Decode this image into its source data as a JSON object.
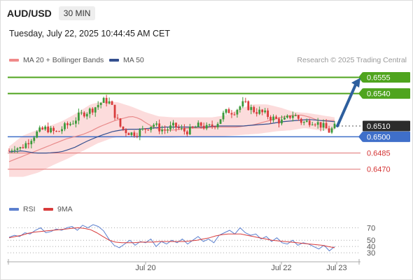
{
  "header": {
    "symbol": "AUD/USD",
    "timeframe": "30 MIN",
    "datetime": "Tuesday, July 22, 2025 10:44:45 AM CET"
  },
  "legend": {
    "bollinger_label": "MA 20 + Bollinger Bands",
    "ma50_label": "MA 50",
    "credit": "Research © 2025 Trading Central",
    "rsi_label": "RSI",
    "rsi_ma_label": "9MA"
  },
  "colors": {
    "candle_up": "#3a9a3a",
    "candle_down": "#d83b3b",
    "band_fill": "#fbd6d6",
    "ma20": "#e88a8a",
    "ma50": "#35508f",
    "green_level": "#4fa41e",
    "blue_level": "#3f6fc9",
    "red_level": "#e07070",
    "arrow": "#2e5f9e",
    "rsi": "#5c80cf",
    "rsi_ma": "#d83b3b"
  },
  "chart_data": [
    {
      "type": "candlestick",
      "title": "AUD/USD",
      "ylim": [
        0.6442,
        0.6565
      ],
      "x_ticks": [
        "Jul 20",
        "Jul 22",
        "Jul 23"
      ],
      "levels": [
        {
          "value": 0.6555,
          "label": "0.6555",
          "kind": "resistance"
        },
        {
          "value": 0.654,
          "label": "0.6540",
          "kind": "resistance"
        },
        {
          "value": 0.651,
          "label": "0.6510",
          "kind": "current"
        },
        {
          "value": 0.65,
          "label": "0.6500",
          "kind": "pivot"
        },
        {
          "value": 0.6485,
          "label": "0.6485",
          "kind": "support"
        },
        {
          "value": 0.647,
          "label": "0.6470",
          "kind": "support"
        }
      ],
      "close_path": [
        0.6487,
        0.6491,
        0.6489,
        0.6493,
        0.6498,
        0.6503,
        0.6506,
        0.6508,
        0.6505,
        0.6504,
        0.6508,
        0.6511,
        0.6514,
        0.6519,
        0.6522,
        0.6524,
        0.6527,
        0.6531,
        0.6534,
        0.6531,
        0.6518,
        0.6508,
        0.6505,
        0.6503,
        0.6504,
        0.6506,
        0.6509,
        0.6512,
        0.6508,
        0.6506,
        0.6508,
        0.651,
        0.6507,
        0.6505,
        0.6506,
        0.6509,
        0.6511,
        0.6508,
        0.651,
        0.6513,
        0.652,
        0.6524,
        0.6523,
        0.6527,
        0.6531,
        0.6527,
        0.6524,
        0.6523,
        0.6521,
        0.6518,
        0.6516,
        0.6514,
        0.6516,
        0.6521,
        0.6518,
        0.6513,
        0.6514,
        0.6515,
        0.6512,
        0.6509,
        0.6505,
        0.6509
      ],
      "ma20": [
        0.6477,
        0.648,
        0.6483,
        0.6486,
        0.6489,
        0.6492,
        0.6495,
        0.6498,
        0.65,
        0.6502,
        0.6505,
        0.6509,
        0.6512,
        0.6515,
        0.6517,
        0.6519,
        0.6517,
        0.6512,
        0.6508,
        0.6506,
        0.6506,
        0.6507,
        0.6508,
        0.6508,
        0.6508,
        0.6509,
        0.6509,
        0.6509,
        0.6509,
        0.651,
        0.6511,
        0.6513,
        0.6515,
        0.6517,
        0.6519,
        0.652,
        0.652,
        0.6518,
        0.6515,
        0.6515,
        0.6515
      ],
      "ma50": [
        0.6486,
        0.6487,
        0.6485,
        0.6485,
        0.6486,
        0.649,
        0.6496,
        0.6501,
        0.6505,
        0.6507,
        0.6507,
        0.6508,
        0.6509,
        0.6509,
        0.6509,
        0.6509,
        0.651,
        0.651,
        0.651,
        0.6511,
        0.6512,
        0.6514,
        0.6515,
        0.6516,
        0.6515,
        0.6514
      ],
      "bb_upper": [
        0.6491,
        0.6501,
        0.6506,
        0.651,
        0.6515,
        0.6522,
        0.653,
        0.6533,
        0.6532,
        0.6528,
        0.6523,
        0.6519,
        0.6518,
        0.6518,
        0.6518,
        0.6518,
        0.652,
        0.6526,
        0.653,
        0.653,
        0.6527,
        0.6523,
        0.6522,
        0.652,
        0.6518
      ],
      "bb_lower": [
        0.6463,
        0.6463,
        0.6467,
        0.6474,
        0.648,
        0.6487,
        0.6494,
        0.6499,
        0.6501,
        0.65,
        0.6499,
        0.6499,
        0.65,
        0.65,
        0.65,
        0.6501,
        0.6502,
        0.6503,
        0.6505,
        0.6506,
        0.6508,
        0.6506,
        0.6506
      ]
    },
    {
      "type": "line",
      "title": "RSI",
      "ylim": [
        20,
        85
      ],
      "y_ticks": [
        70,
        50,
        40,
        30
      ],
      "series": [
        {
          "name": "RSI",
          "values": [
            55,
            58,
            56,
            62,
            60,
            66,
            70,
            62,
            64,
            68,
            66,
            70,
            72,
            66,
            74,
            70,
            75,
            72,
            65,
            52,
            42,
            38,
            44,
            50,
            42,
            48,
            46,
            52,
            40,
            48,
            44,
            50,
            46,
            52,
            44,
            50,
            56,
            48,
            52,
            46,
            58,
            62,
            66,
            60,
            70,
            62,
            58,
            60,
            52,
            56,
            48,
            54,
            46,
            44,
            50,
            42,
            46,
            44,
            40,
            36,
            42,
            33,
            40
          ]
        },
        {
          "name": "9MA",
          "values": [
            54,
            56,
            58,
            61,
            63,
            64,
            65,
            66,
            67,
            68,
            69,
            70,
            69,
            67,
            62,
            56,
            50,
            47,
            46,
            46,
            46,
            47,
            47,
            47,
            48,
            48,
            48,
            48,
            48,
            49,
            50,
            52,
            54,
            57,
            59,
            60,
            60,
            60,
            58,
            56,
            54,
            52,
            50,
            49,
            48,
            47,
            46,
            45,
            44,
            43,
            42,
            40,
            38
          ]
        }
      ]
    }
  ]
}
